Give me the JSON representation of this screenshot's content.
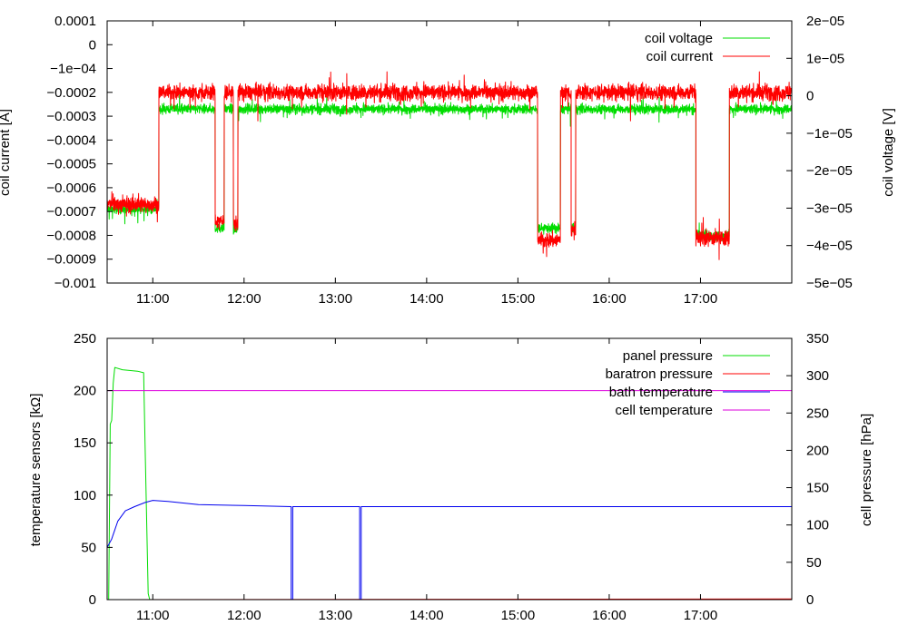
{
  "chart_data": [
    {
      "type": "line",
      "panel": "top",
      "ylabel": "coil current [A]",
      "y2label": "coil voltage [V]",
      "xlim": [
        "10:30",
        "18:00"
      ],
      "ylim": [
        -0.001,
        0.0001
      ],
      "y2lim": [
        -5e-05,
        2e-05
      ],
      "xticks": [
        "11:00",
        "12:00",
        "13:00",
        "14:00",
        "15:00",
        "16:00",
        "17:00"
      ],
      "yticks": [
        "0.0001",
        "0",
        "−1e−04",
        "−0.0002",
        "−0.0003",
        "−0.0004",
        "−0.0005",
        "−0.0006",
        "−0.0007",
        "−0.0008",
        "−0.0009",
        "−0.001"
      ],
      "ytick_values": [
        0.0001,
        0,
        -0.0001,
        -0.0002,
        -0.0003,
        -0.0004,
        -0.0005,
        -0.0006,
        -0.0007,
        -0.0008,
        -0.0009,
        -0.001
      ],
      "y2ticks": [
        "2e−05",
        "1e−05",
        "0",
        "−1e−05",
        "−2e−05",
        "−3e−05",
        "−4e−05",
        "−5e−05"
      ],
      "y2tick_values": [
        2e-05,
        1e-05,
        0,
        -1e-05,
        -2e-05,
        -3e-05,
        -4e-05,
        -5e-05
      ],
      "legend_position": "top-right",
      "series": [
        {
          "name": "coil voltage",
          "color": "#00dd00",
          "axis": "left",
          "noise": 3e-05,
          "segments": [
            {
              "t0": "10:30",
              "t1": "11:04",
              "level": -0.00069
            },
            {
              "t0": "11:04",
              "t1": "11:41",
              "level": -0.00027
            },
            {
              "t0": "11:41",
              "t1": "11:47",
              "level": -0.00077
            },
            {
              "t0": "11:47",
              "t1": "11:53",
              "level": -0.00027
            },
            {
              "t0": "11:53",
              "t1": "11:56",
              "level": -0.00078
            },
            {
              "t0": "11:56",
              "t1": "15:13",
              "level": -0.00027
            },
            {
              "t0": "15:13",
              "t1": "15:28",
              "level": -0.00077
            },
            {
              "t0": "15:28",
              "t1": "15:35",
              "level": -0.00027
            },
            {
              "t0": "15:35",
              "t1": "15:38",
              "level": -0.00077
            },
            {
              "t0": "15:38",
              "t1": "16:57",
              "level": -0.00027
            },
            {
              "t0": "16:57",
              "t1": "17:19",
              "level": -0.0008
            },
            {
              "t0": "17:19",
              "t1": "18:00",
              "level": -0.00027
            }
          ]
        },
        {
          "name": "coil current",
          "color": "#ff0000",
          "axis": "left",
          "noise": 5e-05,
          "segments": [
            {
              "t0": "10:30",
              "t1": "11:04",
              "level": -0.00067
            },
            {
              "t0": "11:04",
              "t1": "11:41",
              "level": -0.0002
            },
            {
              "t0": "11:41",
              "t1": "11:47",
              "level": -0.00074
            },
            {
              "t0": "11:47",
              "t1": "11:53",
              "level": -0.0002
            },
            {
              "t0": "11:53",
              "t1": "11:56",
              "level": -0.00075
            },
            {
              "t0": "11:56",
              "t1": "15:13",
              "level": -0.0002
            },
            {
              "t0": "15:13",
              "t1": "15:28",
              "level": -0.00082
            },
            {
              "t0": "15:28",
              "t1": "15:35",
              "level": -0.0002
            },
            {
              "t0": "15:35",
              "t1": "15:38",
              "level": -0.00078
            },
            {
              "t0": "15:38",
              "t1": "16:57",
              "level": -0.0002
            },
            {
              "t0": "16:57",
              "t1": "17:19",
              "level": -0.00081
            },
            {
              "t0": "17:19",
              "t1": "18:00",
              "level": -0.0002
            }
          ]
        }
      ]
    },
    {
      "type": "line",
      "panel": "bottom",
      "ylabel": "temperature sensors [kΩ]",
      "y2label": "cell pressure [hPa]",
      "xlim": [
        "10:30",
        "18:00"
      ],
      "ylim": [
        0,
        250
      ],
      "y2lim": [
        0,
        350
      ],
      "xticks": [
        "11:00",
        "12:00",
        "13:00",
        "14:00",
        "15:00",
        "16:00",
        "17:00"
      ],
      "yticks": [
        "250",
        "200",
        "150",
        "100",
        "50",
        "0"
      ],
      "ytick_values": [
        250,
        200,
        150,
        100,
        50,
        0
      ],
      "y2ticks": [
        "350",
        "300",
        "250",
        "200",
        "150",
        "100",
        "50",
        "0"
      ],
      "y2tick_values": [
        350,
        300,
        250,
        200,
        150,
        100,
        50,
        0
      ],
      "legend_position": "top-right",
      "series": [
        {
          "name": "panel pressure",
          "color": "#00dd00",
          "axis": "right",
          "points": [
            [
              "10:31",
              0
            ],
            [
              "10:32",
              235
            ],
            [
              "10:33",
              240
            ],
            [
              "10:34",
              290
            ],
            [
              "10:35",
              311
            ],
            [
              "10:40",
              308
            ],
            [
              "10:50",
              306
            ],
            [
              "10:54",
              304
            ],
            [
              "10:55",
              200
            ],
            [
              "10:57",
              8
            ],
            [
              "10:58",
              0
            ],
            [
              "18:00",
              0
            ]
          ]
        },
        {
          "name": "baratron pressure",
          "color": "#ff0000",
          "axis": "right",
          "points": [
            [
              "10:31",
              0
            ],
            [
              "18:00",
              1
            ]
          ]
        },
        {
          "name": "bath temperature",
          "color": "#0000ee",
          "axis": "left",
          "points": [
            [
              "10:30",
              50
            ],
            [
              "10:33",
              58
            ],
            [
              "10:37",
              75
            ],
            [
              "10:42",
              85
            ],
            [
              "10:48",
              89
            ],
            [
              "10:55",
              93
            ],
            [
              "11:00",
              95
            ],
            [
              "11:10",
              94
            ],
            [
              "11:30",
              91
            ],
            [
              "12:00",
              90
            ],
            [
              "12:31",
              89
            ],
            [
              "12:31",
              0
            ],
            [
              "12:32",
              0
            ],
            [
              "12:32",
              89
            ],
            [
              "13:16",
              89
            ],
            [
              "13:16",
              0
            ],
            [
              "13:17",
              0
            ],
            [
              "13:17",
              89
            ],
            [
              "15:00",
              89
            ],
            [
              "16:00",
              89
            ],
            [
              "18:00",
              89
            ]
          ]
        },
        {
          "name": "cell temperature",
          "color": "#dd00dd",
          "axis": "left",
          "points": [
            [
              "10:30",
              200
            ],
            [
              "18:00",
              200
            ]
          ]
        }
      ]
    }
  ]
}
